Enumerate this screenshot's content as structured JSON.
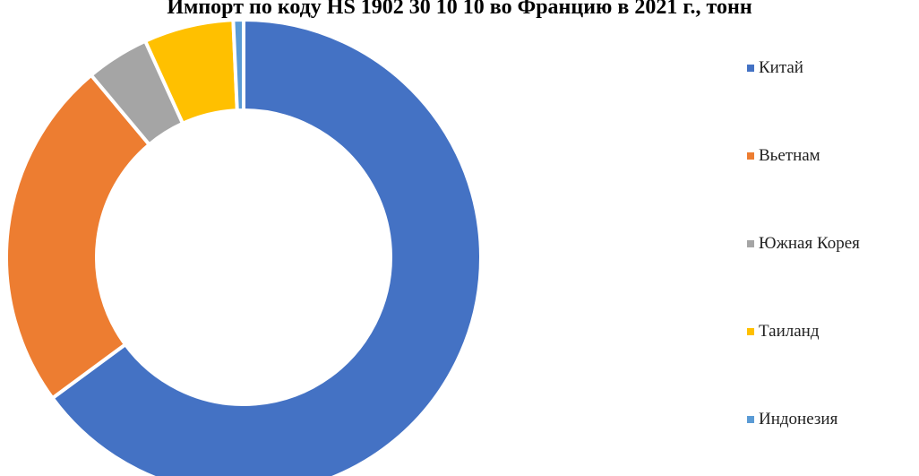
{
  "chart_data": {
    "type": "pie",
    "variant": "donut",
    "title": "Импорт по коду HS 1902 30 10 10 во Францию в 2021 г., тонн",
    "categories": [
      "Китай",
      "Вьетнам",
      "Южная Корея",
      "Таиланд",
      "Индонезия"
    ],
    "values": [
      64.9,
      24.0,
      4.3,
      6.1,
      0.7
    ],
    "colors": [
      "#4472C4",
      "#ED7D31",
      "#A5A5A5",
      "#FFC000",
      "#5B9BD5"
    ],
    "legend_position": "right"
  }
}
